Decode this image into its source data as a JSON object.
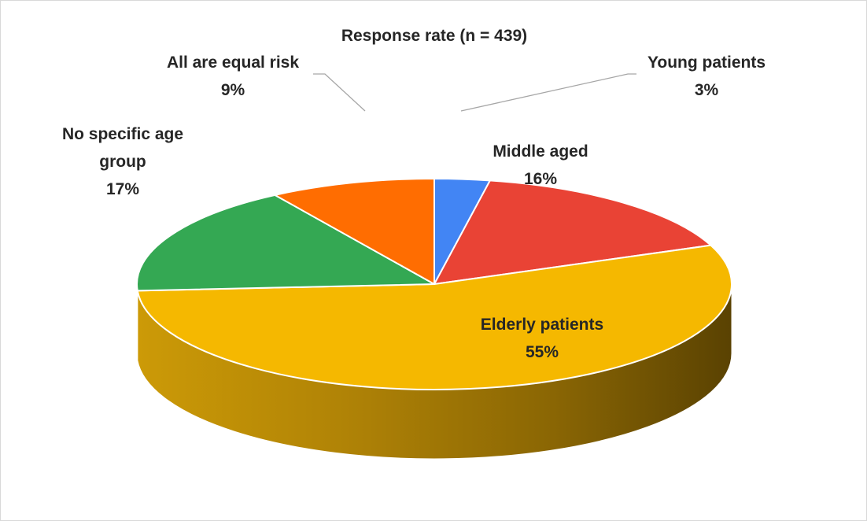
{
  "chart_data": {
    "type": "pie",
    "title": "Response rate (n = 439)",
    "three_d": true,
    "legend": "none",
    "slices": [
      {
        "label": "Young patients",
        "value": 3,
        "display": "3%",
        "color": "#4285f4",
        "label_position": "outside-callout"
      },
      {
        "label": "Middle aged",
        "value": 16,
        "display": "16%",
        "color": "#e94335",
        "label_position": "inside"
      },
      {
        "label": "Elderly patients",
        "value": 55,
        "display": "55%",
        "color": "#f5b800",
        "label_position": "inside"
      },
      {
        "label": "No specific age group",
        "value": 17,
        "display": "17%",
        "color": "#34a853",
        "label_position": "outside"
      },
      {
        "label": "All are equal risk",
        "value": 9,
        "display": "9%",
        "color": "#ff6d01",
        "label_position": "outside-callout"
      }
    ]
  }
}
